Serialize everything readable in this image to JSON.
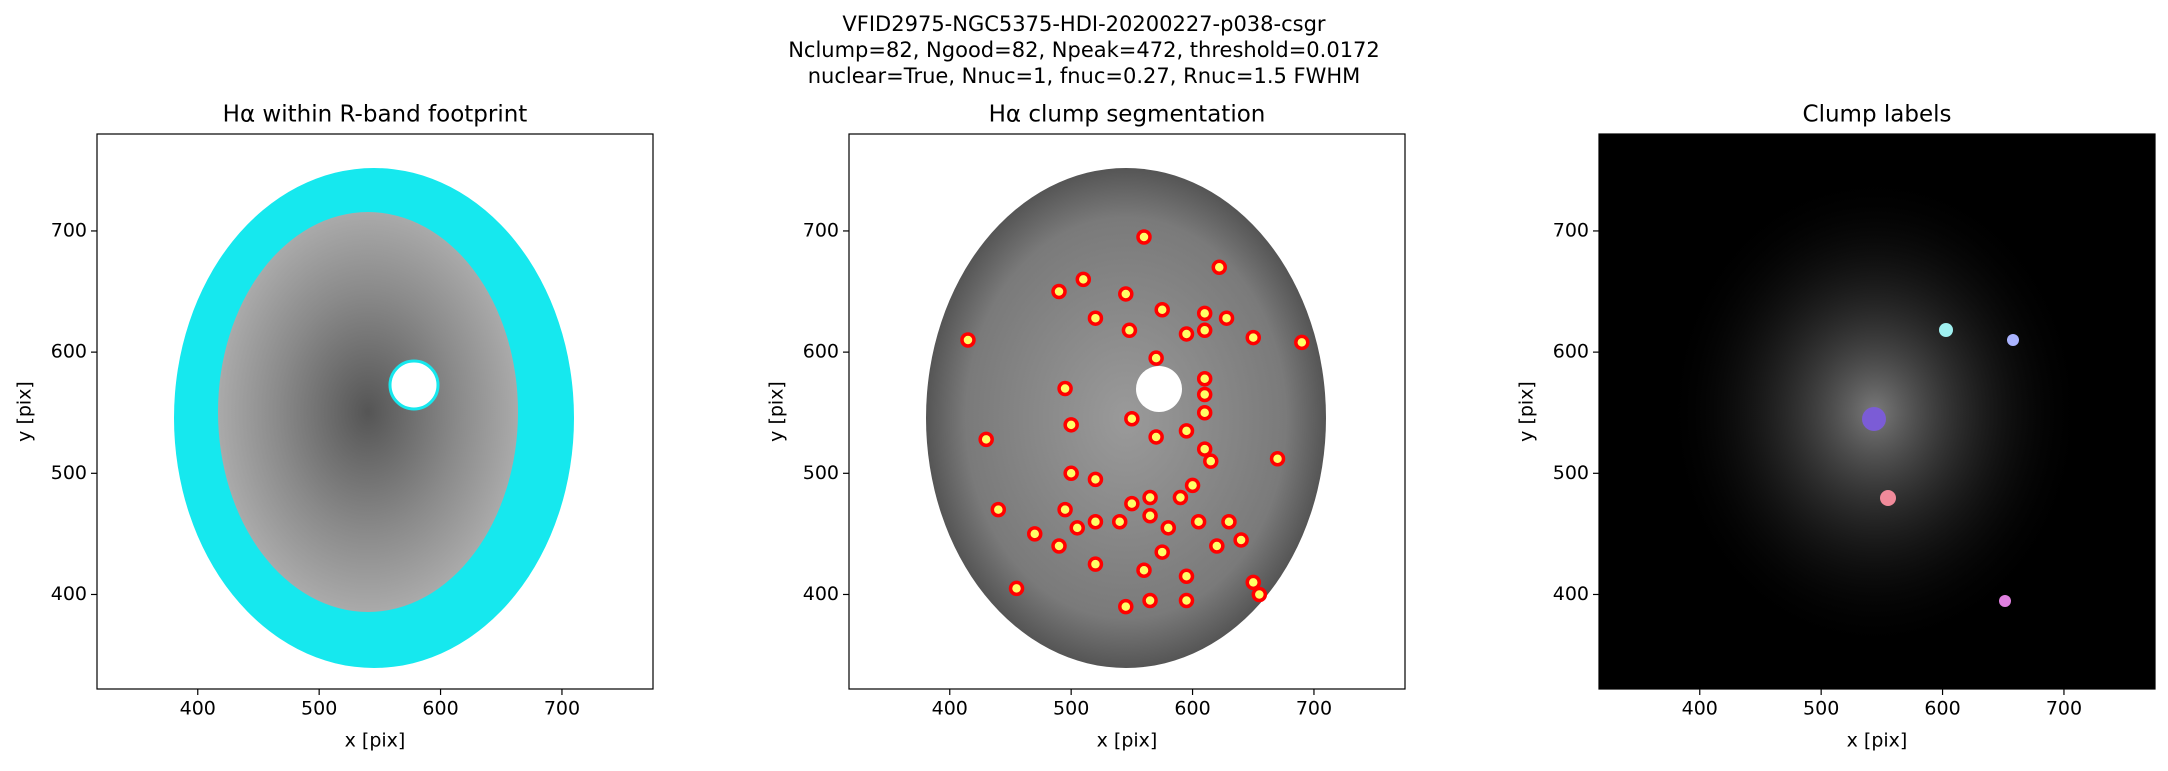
{
  "figure": {
    "title_lines": [
      "VFID2975-NGC5375-HDI-20200227-p038-csgr",
      "Nclump=82, Ngood=82, Npeak=472, threshold=0.0172",
      "nuclear=True, Nnuc=1, fnuc=0.27, Rnuc=1.5 FWHM"
    ]
  },
  "chart_data": [
    {
      "type": "image",
      "title": "Hα within R-band footprint",
      "xlabel": "x [pix]",
      "ylabel": "y [pix]",
      "xlim": [
        317,
        775
      ],
      "ylim": [
        322,
        780
      ],
      "xticks": [
        400,
        500,
        600,
        700
      ],
      "yticks": [
        400,
        500,
        600,
        700
      ]
    },
    {
      "type": "scatter",
      "title": "Hα clump segmentation",
      "xlabel": "x [pix]",
      "ylabel": "y [pix]",
      "xlim": [
        317,
        775
      ],
      "ylim": [
        322,
        780
      ],
      "xticks": [
        400,
        500,
        600,
        700
      ],
      "yticks": [
        400,
        500,
        600,
        700
      ],
      "color": "#ff0000",
      "x": [
        560,
        622,
        510,
        490,
        545,
        575,
        610,
        628,
        520,
        548,
        595,
        610,
        650,
        690,
        415,
        570,
        610,
        610,
        495,
        610,
        550,
        500,
        595,
        610,
        570,
        430,
        615,
        670,
        500,
        520,
        565,
        550,
        600,
        590,
        495,
        440,
        565,
        540,
        520,
        505,
        470,
        580,
        605,
        630,
        620,
        490,
        575,
        560,
        595,
        520,
        455,
        565,
        545,
        595,
        650,
        655,
        640
      ],
      "y": [
        695,
        670,
        660,
        650,
        648,
        635,
        632,
        628,
        628,
        618,
        615,
        618,
        612,
        608,
        610,
        595,
        578,
        565,
        570,
        550,
        545,
        540,
        535,
        520,
        530,
        528,
        510,
        512,
        500,
        495,
        480,
        475,
        490,
        480,
        470,
        470,
        465,
        460,
        460,
        455,
        450,
        455,
        460,
        460,
        440,
        440,
        435,
        420,
        415,
        425,
        405,
        395,
        390,
        395,
        410,
        400,
        445
      ]
    },
    {
      "type": "image",
      "title": "Clump labels",
      "xlabel": "x [pix]",
      "ylabel": "y [pix]",
      "xlim": [
        317,
        775
      ],
      "ylim": [
        322,
        780
      ],
      "xticks": [
        400,
        500,
        600,
        700
      ],
      "yticks": [
        400,
        500,
        600,
        700
      ]
    }
  ]
}
